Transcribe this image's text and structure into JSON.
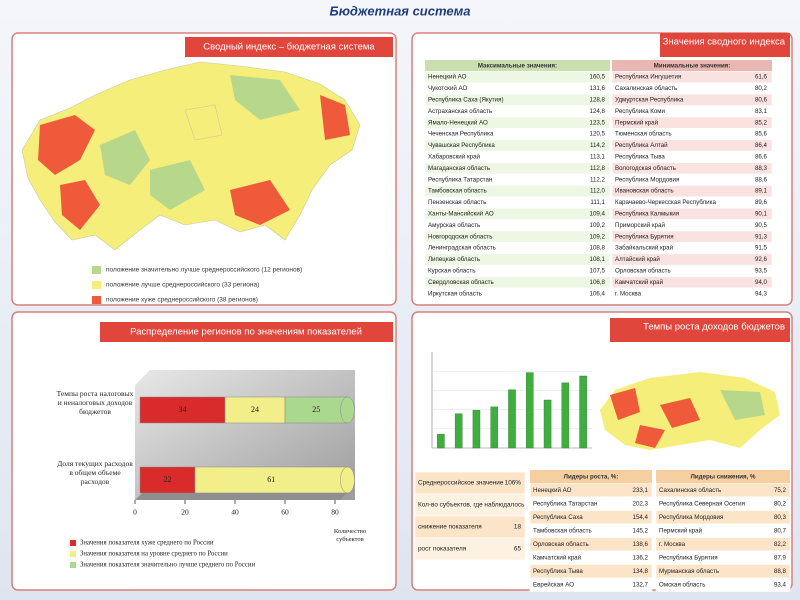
{
  "header": {
    "title": "Бюджетная система"
  },
  "index_panel": {
    "title": "Сводный индекс – бюджетная система",
    "legend": [
      {
        "label": "положение значительно лучше среднероссийского (12 регионов)",
        "color": "#b7d88a"
      },
      {
        "label": "положение лучше среднероссийского (33 региона)",
        "color": "#f5ee7a"
      },
      {
        "label": "положение хуже среднероссийского (38 регионов)",
        "color": "#ee5a3a"
      }
    ]
  },
  "values_panel": {
    "title": "Значения сводного индекса",
    "max": {
      "title": "Максимальные значения:",
      "rows": [
        [
          "Ненецкий АО",
          "160,5"
        ],
        [
          "Чукотский АО",
          "131,6"
        ],
        [
          "Республика Саха (Якутия)",
          "128,8"
        ],
        [
          "Астраханская область",
          "124,8"
        ],
        [
          "Ямало-Ненецкий АО",
          "123,5"
        ],
        [
          "Чеченская Республика",
          "120,5"
        ],
        [
          "Чувашская Республика",
          "114,2"
        ],
        [
          "Хабаровский край",
          "113,1"
        ],
        [
          "Магаданская область",
          "112,8"
        ],
        [
          "Республика Татарстан",
          "112,2"
        ],
        [
          "Тамбовская область",
          "112,0"
        ],
        [
          "Пензенская область",
          "111,1"
        ],
        [
          "Ханты-Мансийский АО",
          "109,4"
        ],
        [
          "Амурская область",
          "109,2"
        ],
        [
          "Новгородская область",
          "109,2"
        ],
        [
          "Ленинградская область",
          "108,8"
        ],
        [
          "Липецкая область",
          "108,1"
        ],
        [
          "Курская область",
          "107,5"
        ],
        [
          "Свердловская область",
          "106,8"
        ],
        [
          "Иркутская область",
          "106,4"
        ]
      ]
    },
    "min": {
      "title": "Минимальные значения:",
      "rows": [
        [
          "Республика Ингушетия",
          "61,6"
        ],
        [
          "Сахалинская область",
          "80,2"
        ],
        [
          "Удмуртская Республика",
          "80,6"
        ],
        [
          "Республика Коми",
          "83,1"
        ],
        [
          "Пермский край",
          "85,2"
        ],
        [
          "Тюменская область",
          "85,6"
        ],
        [
          "Республика Алтай",
          "86,4"
        ],
        [
          "Республика Тыва",
          "86,6"
        ],
        [
          "Вологодская область",
          "88,3"
        ],
        [
          "Республика Мордовия",
          "88,6"
        ],
        [
          "Ивановская область",
          "89,1"
        ],
        [
          "Карачаево-Черкесская Республика",
          "89,6"
        ],
        [
          "Республика Калмыкия",
          "90,1"
        ],
        [
          "Приморский край",
          "90,5"
        ],
        [
          "Республика Бурятия",
          "91,3"
        ],
        [
          "Забайкальский край",
          "91,5"
        ],
        [
          "Алтайский край",
          "92,6"
        ],
        [
          "Орловская область",
          "93,5"
        ],
        [
          "Камчатский край",
          "94,0"
        ],
        [
          "г. Москва",
          "94,3"
        ]
      ]
    }
  },
  "distribution_panel": {
    "title": "Распределение регионов по значениям показателей"
  },
  "growth_panel": {
    "title": "Темпы роста доходов бюджетов",
    "summary": {
      "rows": [
        [
          "Среднероссийское значение",
          "106%"
        ],
        [
          "Кол-во субъектов, где наблюдалось",
          null
        ],
        [
          "снижение показателя",
          "18"
        ],
        [
          "рост показателя",
          "65"
        ]
      ]
    },
    "leaders_growth": {
      "title": "Лидеры роста, %:",
      "rows": [
        [
          "Ненецкий АО",
          "233,1"
        ],
        [
          "Республика Татарстан",
          "202,3"
        ],
        [
          "Республика Саха",
          "154,4"
        ],
        [
          "Тамбовская область",
          "145,2"
        ],
        [
          "Орловская область",
          "138,6"
        ],
        [
          "Камчатский край",
          "136,2"
        ],
        [
          "Республика Тыва",
          "134,8"
        ],
        [
          "Еврейская АО",
          "132,7"
        ]
      ]
    },
    "leaders_decline": {
      "title": "Лидеры снижения, %",
      "rows": [
        [
          "Сахалинская область",
          "75,2"
        ],
        [
          "Республика Северная Осетия",
          "80,2"
        ],
        [
          "Республика Мордовия",
          "80,3"
        ],
        [
          "Пермский край",
          "80,7"
        ],
        [
          "г. Москва",
          "82,2"
        ],
        [
          "Республика Бурятия",
          "87,9"
        ],
        [
          "Мурманская область",
          "88,8"
        ],
        [
          "Омская область",
          "93,4"
        ]
      ]
    }
  },
  "chart_data": [
    {
      "type": "hbar-stacked",
      "categories": [
        "Темпы роста налоговых и неналоговых доходов бюджетов",
        "Доля текущих расходов в общем объеме расходов"
      ],
      "series": [
        {
          "name": "Значения показателя хуже среднего по России",
          "color": "#d92b2b",
          "values": [
            34,
            22
          ]
        },
        {
          "name": "Значения показателя на уровне среднего по России",
          "color": "#f2ee8a",
          "values": [
            24,
            61
          ]
        },
        {
          "name": "Значения показателя значительно лучше среднего по России",
          "color": "#a9d88e",
          "values": [
            25,
            null
          ]
        }
      ],
      "xlim": [
        0,
        80
      ],
      "xticks": [
        0,
        20,
        40,
        60,
        80
      ],
      "x_label": "Количество субъектов"
    },
    {
      "type": "bar",
      "color": "#3fae3f",
      "values": [
        2,
        5,
        5.5,
        6,
        8.5,
        11,
        7,
        9.5,
        10.5
      ],
      "ylim": [
        0,
        14
      ],
      "grid": true
    }
  ]
}
